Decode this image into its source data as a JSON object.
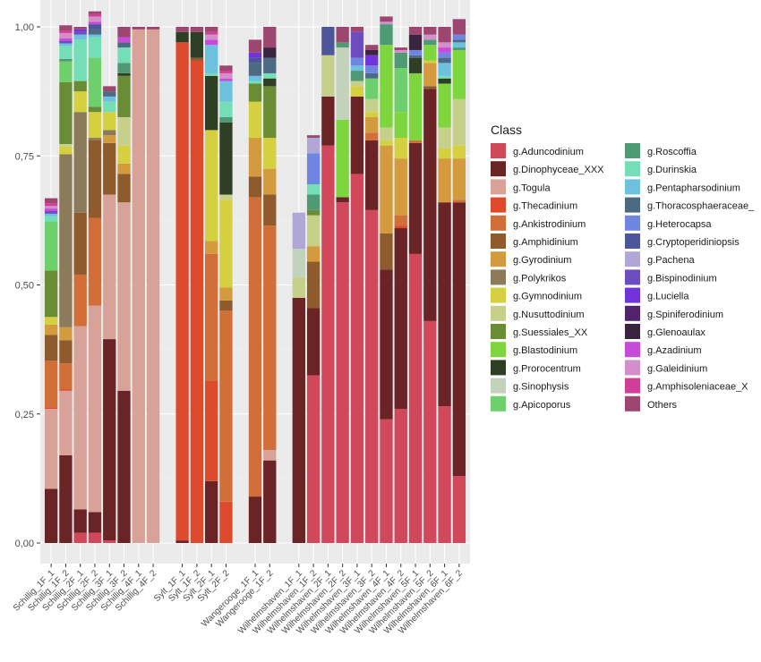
{
  "chart_data": {
    "type": "bar",
    "stacked": true,
    "ylim": [
      0,
      1
    ],
    "yticks": [
      "0,00",
      "0,25",
      "0,50",
      "0,75",
      "1,00"
    ],
    "ytick_values": [
      0,
      0.25,
      0.5,
      0.75,
      1.0
    ],
    "grid": true,
    "legend_position": "right",
    "legend_title": "Class",
    "taxa": [
      "g.Aduncodinium",
      "g.Dinophyceae_XXX",
      "g.Togula",
      "g.Thecadinium",
      "g.Ankistrodinium",
      "g.Amphidinium",
      "g.Gyrodinium",
      "g.Polykrikos",
      "g.Gymnodinium",
      "g.Nusuttodinium",
      "g.Suessiales_XX",
      "g.Blastodinium",
      "g.Prorocentrum",
      "g.Sinophysis",
      "g.Apicoporus",
      "g.Roscoffia",
      "g.Durinskia",
      "g.Pentapharsodinium",
      "g.Thoracosphaeraceae_",
      "g.Heterocapsa",
      "g.Cryptoperidiniopsis",
      "g.Pachena",
      "g.Bispinodinium",
      "g.Luciella",
      "g.Spiniferodinium",
      "g.Glenoaulax",
      "g.Azadinium",
      "g.Galeidinium",
      "g.Amphisoleniaceae_X",
      "Others"
    ],
    "colors": [
      "#D1485B",
      "#6A2426",
      "#D9A298",
      "#DE4A2C",
      "#D26E38",
      "#8F5B2C",
      "#D39B3E",
      "#8C7B5B",
      "#D4D03F",
      "#C6D08A",
      "#6A8C34",
      "#7DD63E",
      "#2F3F25",
      "#C2D2BB",
      "#6ED06D",
      "#4E9A74",
      "#74DFB6",
      "#6BC1DE",
      "#4C6A82",
      "#6F86E0",
      "#4D5698",
      "#B0A7D6",
      "#6C4DC0",
      "#7133DA",
      "#51236B",
      "#3A2540",
      "#C84AD9",
      "#D48ECA",
      "#D03F95",
      "#9C4670"
    ],
    "categories": [
      "Schillig_1F_1",
      "Schillig_1F_2",
      "Schillig_2F_1",
      "Schillig_2F_2",
      "Schillig_3F_1",
      "Schillig_3F_2",
      "Schillig_4F_1",
      "Schillig_4F_2",
      "Sylt_1F_1",
      "Sylt_1F_2",
      "Sylt_2F_1",
      "Sylt_2F_2",
      "Wangerooge_1F_1",
      "Wangerooge_1F_2",
      "Wilhelmshaven_1F_1",
      "Wilhelmshaven_1F_2",
      "Wilhelmshaven_2F_1",
      "Wilhelmshaven_2F_2",
      "Wilhelmshaven_3F_1",
      "Wilhelmshaven_3F_2",
      "Wilhelmshaven_4F_1",
      "Wilhelmshaven_4F_2",
      "Wilhelmshaven_5F_1",
      "Wilhelmshaven_5F_2",
      "Wilhelmshaven_6F_1",
      "Wilhelmshaven_6F_2"
    ],
    "gap_after": [
      7,
      11,
      13
    ],
    "values": [
      [
        0.0,
        0.105,
        0.155,
        0.003,
        0.09,
        0.05,
        0.02,
        0.0,
        0.015,
        0.0,
        0.09,
        0.0,
        0.0,
        0.0,
        0.095,
        0.0,
        0.01,
        0.005,
        0.0,
        0.0,
        0.0,
        0.0,
        0.005,
        0.0,
        0.0,
        0.0,
        0.005,
        0.005,
        0.005,
        0.01
      ],
      [
        0.0,
        0.17,
        0.125,
        0.003,
        0.05,
        0.045,
        0.025,
        0.335,
        0.015,
        0.005,
        0.12,
        0.0,
        0.0,
        0.0,
        0.04,
        0.005,
        0.025,
        0.005,
        0.0,
        0.0,
        0.0,
        0.0,
        0.005,
        0.0,
        0.0,
        0.0,
        0.005,
        0.01,
        0.005,
        0.01
      ],
      [
        0.02,
        0.045,
        0.355,
        0.0,
        0.1,
        0.12,
        0.0,
        0.195,
        0.04,
        0.0,
        0.02,
        0.0,
        0.0,
        0.0,
        0.0,
        0.0,
        0.08,
        0.01,
        0.0,
        0.0,
        0.0,
        0.0,
        0.005,
        0.005,
        0.0,
        0.0,
        0.0,
        0.0,
        0.0,
        0.005
      ],
      [
        0.02,
        0.04,
        0.4,
        0.0,
        0.17,
        0.15,
        0.0,
        0.005,
        0.05,
        0.0,
        0.01,
        0.0,
        0.0,
        0.0,
        0.095,
        0.0,
        0.04,
        0.005,
        0.01,
        0.0,
        0.01,
        0.0,
        0.0,
        0.0,
        0.0,
        0.0,
        0.005,
        0.01,
        0.005,
        0.005
      ],
      [
        0.005,
        0.39,
        0.28,
        0.0,
        0.0,
        0.1,
        0.015,
        0.01,
        0.035,
        0.0,
        0.0,
        0.0,
        0.0,
        0.0,
        0.0,
        0.0,
        0.02,
        0.01,
        0.01,
        0.0,
        0.0,
        0.0,
        0.0,
        0.0,
        0.0,
        0.0,
        0.0,
        0.0,
        0.0,
        0.01
      ],
      [
        0.0,
        0.295,
        0.365,
        0.0,
        0.0,
        0.055,
        0.02,
        0.0,
        0.035,
        0.055,
        0.08,
        0.0,
        0.005,
        0.0,
        0.0,
        0.02,
        0.03,
        0.0,
        0.01,
        0.0,
        0.0,
        0.0,
        0.0,
        0.0,
        0.0,
        0.0,
        0.01,
        0.0,
        0.0,
        0.02
      ],
      [
        0.0,
        0.0,
        0.995,
        0.0,
        0.0,
        0.0,
        0.0,
        0.0,
        0.0,
        0.0,
        0.0,
        0.0,
        0.0,
        0.0,
        0.0,
        0.0,
        0.0,
        0.0,
        0.0,
        0.0,
        0.0,
        0.0,
        0.0,
        0.0,
        0.0,
        0.0,
        0.0,
        0.0,
        0.0,
        0.005
      ],
      [
        0.0,
        0.0,
        0.995,
        0.0,
        0.0,
        0.0,
        0.0,
        0.0,
        0.0,
        0.0,
        0.0,
        0.0,
        0.0,
        0.0,
        0.0,
        0.0,
        0.0,
        0.0,
        0.0,
        0.0,
        0.0,
        0.0,
        0.0,
        0.0,
        0.0,
        0.0,
        0.0,
        0.0,
        0.0,
        0.005
      ],
      [
        0.0,
        0.005,
        0.0,
        0.965,
        0.0,
        0.0,
        0.0,
        0.0,
        0.0,
        0.0,
        0.0,
        0.0,
        0.02,
        0.0,
        0.0,
        0.0,
        0.0,
        0.0,
        0.0,
        0.0,
        0.0,
        0.0,
        0.0,
        0.0,
        0.0,
        0.0,
        0.0,
        0.0,
        0.0,
        0.01
      ],
      [
        0.0,
        0.0,
        0.0,
        0.935,
        0.0,
        0.005,
        0.0,
        0.0,
        0.0,
        0.0,
        0.0,
        0.0,
        0.05,
        0.0,
        0.0,
        0.0,
        0.0,
        0.0,
        0.0,
        0.0,
        0.0,
        0.0,
        0.0,
        0.0,
        0.0,
        0.0,
        0.0,
        0.0,
        0.0,
        0.01
      ],
      [
        0.0,
        0.12,
        0.0,
        0.195,
        0.245,
        0.0,
        0.025,
        0.0,
        0.215,
        0.0,
        0.0,
        0.0,
        0.105,
        0.0,
        0.0,
        0.0,
        0.005,
        0.055,
        0.0,
        0.0,
        0.0,
        0.0,
        0.0,
        0.0,
        0.0,
        0.0,
        0.01,
        0.01,
        0.005,
        0.01
      ],
      [
        0.0,
        0.0,
        0.0,
        0.08,
        0.37,
        0.02,
        0.025,
        0.0,
        0.17,
        0.01,
        0.0,
        0.0,
        0.14,
        0.0,
        0.0,
        0.01,
        0.03,
        0.04,
        0.0,
        0.0,
        0.0,
        0.0,
        0.0,
        0.0,
        0.0,
        0.0,
        0.005,
        0.01,
        0.005,
        0.01
      ],
      [
        0.0,
        0.09,
        0.0,
        0.0,
        0.58,
        0.04,
        0.075,
        0.0,
        0.07,
        0.0,
        0.035,
        0.0,
        0.0,
        0.0,
        0.0,
        0.0,
        0.005,
        0.01,
        0.025,
        0.0,
        0.01,
        0.0,
        0.0,
        0.01,
        0.0,
        0.0,
        0.0,
        0.0,
        0.0,
        0.025
      ],
      [
        0.0,
        0.16,
        0.02,
        0.0,
        0.435,
        0.06,
        0.05,
        0.0,
        0.06,
        0.0,
        0.1,
        0.0,
        0.015,
        0.0,
        0.0,
        0.0,
        0.01,
        0.0,
        0.03,
        0.0,
        0.0,
        0.0,
        0.0,
        0.0,
        0.0,
        0.02,
        0.0,
        0.0,
        0.0,
        0.04
      ],
      [
        0.0,
        0.475,
        0.0,
        0.0,
        0.0,
        0.0,
        0.0,
        0.0,
        0.0,
        0.04,
        0.0,
        0.0,
        0.0,
        0.055,
        0.0,
        0.0,
        0.0,
        0.0,
        0.0,
        0.0,
        0.0,
        0.07,
        0.0,
        0.0,
        0.0,
        0.0,
        0.0,
        0.0,
        0.0,
        0.0
      ],
      [
        0.325,
        0.13,
        0.0,
        0.0,
        0.0,
        0.09,
        0.03,
        0.0,
        0.0,
        0.06,
        0.01,
        0.0,
        0.0,
        0.0,
        0.0,
        0.03,
        0.02,
        0.0,
        0.0,
        0.06,
        0.0,
        0.03,
        0.0,
        0.0,
        0.0,
        0.0,
        0.0,
        0.0,
        0.0,
        0.005
      ],
      [
        0.77,
        0.095,
        0.0,
        0.0,
        0.0,
        0.0,
        0.0,
        0.0,
        0.0,
        0.08,
        0.0,
        0.0,
        0.0,
        0.0,
        0.0,
        0.0,
        0.0,
        0.0,
        0.0,
        0.0,
        0.055,
        0.0,
        0.0,
        0.0,
        0.0,
        0.0,
        0.0,
        0.0,
        0.0,
        0.0
      ],
      [
        0.66,
        0.01,
        0.0,
        0.0,
        0.0,
        0.0,
        0.0,
        0.0,
        0.0,
        0.0,
        0.0,
        0.15,
        0.0,
        0.14,
        0.0,
        0.01,
        0.0,
        0.0,
        0.0,
        0.0,
        0.0,
        0.0,
        0.0,
        0.0,
        0.0,
        0.0,
        0.0,
        0.0,
        0.0,
        0.03
      ],
      [
        0.715,
        0.15,
        0.0,
        0.0,
        0.0,
        0.0,
        0.0,
        0.0,
        0.02,
        0.01,
        0.0,
        0.0,
        0.0,
        0.0,
        0.0,
        0.02,
        0.0,
        0.01,
        0.0,
        0.015,
        0.0,
        0.0,
        0.05,
        0.0,
        0.0,
        0.0,
        0.0,
        0.0,
        0.0,
        0.01
      ],
      [
        0.645,
        0.135,
        0.0,
        0.0,
        0.015,
        0.0,
        0.03,
        0.0,
        0.01,
        0.025,
        0.0,
        0.0,
        0.0,
        0.0,
        0.04,
        0.0,
        0.0,
        0.0,
        0.01,
        0.015,
        0.0,
        0.0,
        0.0,
        0.02,
        0.0,
        0.01,
        0.0,
        0.0,
        0.0,
        0.01
      ],
      [
        0.24,
        0.29,
        0.0,
        0.0,
        0.0,
        0.07,
        0.17,
        0.0,
        0.01,
        0.025,
        0.0,
        0.16,
        0.0,
        0.0,
        0.0,
        0.04,
        0.0,
        0.0,
        0.0,
        0.0,
        0.0,
        0.0,
        0.0,
        0.0,
        0.0,
        0.0,
        0.0,
        0.005,
        0.0,
        0.01
      ],
      [
        0.26,
        0.35,
        0.0,
        0.005,
        0.02,
        0.0,
        0.11,
        0.0,
        0.04,
        0.0,
        0.0,
        0.05,
        0.0,
        0.0,
        0.085,
        0.03,
        0.0,
        0.0,
        0.0,
        0.0,
        0.0,
        0.0,
        0.0,
        0.0,
        0.0,
        0.0,
        0.0,
        0.005,
        0.0,
        0.005
      ],
      [
        0.56,
        0.215,
        0.0,
        0.0,
        0.005,
        0.0,
        0.0,
        0.0,
        0.0,
        0.0,
        0.0,
        0.13,
        0.03,
        0.0,
        0.0,
        0.0,
        0.0,
        0.0,
        0.005,
        0.01,
        0.0,
        0.0,
        0.0,
        0.0,
        0.0,
        0.03,
        0.0,
        0.0,
        0.0,
        0.015
      ],
      [
        0.43,
        0.45,
        0.0,
        0.0,
        0.0,
        0.005,
        0.045,
        0.0,
        0.005,
        0.0,
        0.0,
        0.03,
        0.0,
        0.0,
        0.0,
        0.01,
        0.0,
        0.0,
        0.0,
        0.0,
        0.0,
        0.0,
        0.0,
        0.0,
        0.0,
        0.0,
        0.0,
        0.01,
        0.0,
        0.015
      ],
      [
        0.265,
        0.395,
        0.0,
        0.0,
        0.0,
        0.0,
        0.085,
        0.0,
        0.02,
        0.04,
        0.0,
        0.085,
        0.01,
        0.0,
        0.0,
        0.0,
        0.005,
        0.025,
        0.01,
        0.01,
        0.0,
        0.0,
        0.0,
        0.0,
        0.0,
        0.0,
        0.01,
        0.01,
        0.0,
        0.03
      ],
      [
        0.13,
        0.53,
        0.0,
        0.0,
        0.005,
        0.0,
        0.08,
        0.0,
        0.025,
        0.09,
        0.0,
        0.095,
        0.0,
        0.0,
        0.0,
        0.005,
        0.0,
        0.01,
        0.005,
        0.01,
        0.0,
        0.0,
        0.0,
        0.0,
        0.0,
        0.0,
        0.0,
        0.0,
        0.0,
        0.03
      ]
    ]
  }
}
